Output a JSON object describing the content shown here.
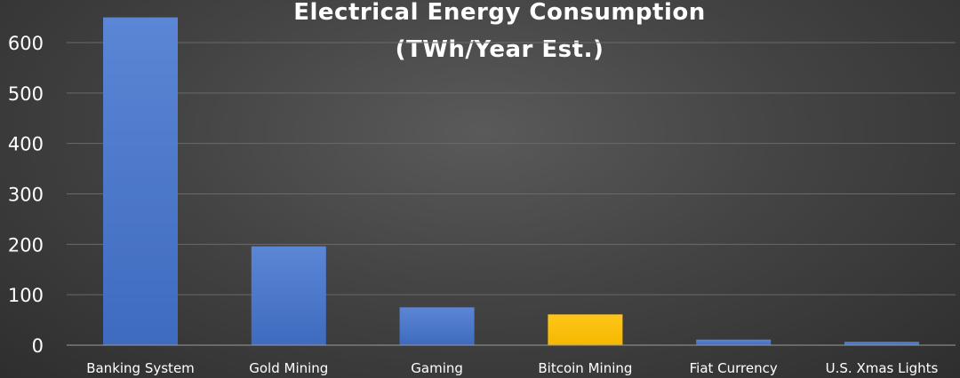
{
  "chart_data": {
    "type": "bar",
    "title": "Electrical Energy Consumption",
    "subtitle": "(TWh/Year Est.)",
    "categories": [
      "Banking System",
      "Gold Mining",
      "Gaming",
      "Bitcoin Mining",
      "Fiat Currency",
      "U.S. Xmas Lights"
    ],
    "values": [
      650,
      196,
      75,
      61,
      11,
      6.6
    ],
    "ylim": [
      0,
      700
    ],
    "yticks": [
      0,
      100,
      200,
      300,
      400,
      500,
      600
    ],
    "grid": true,
    "legend": "none",
    "colors": {
      "default": "#4472c4",
      "highlight": "#ffc000",
      "highlight_index": 3
    }
  }
}
